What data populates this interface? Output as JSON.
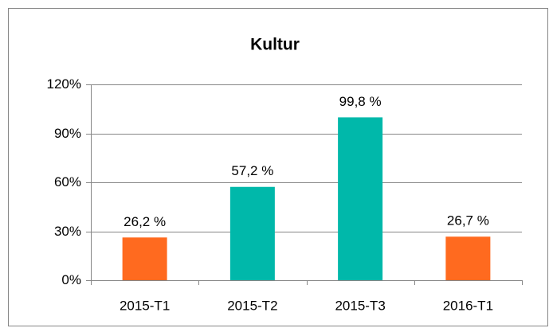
{
  "chart_data": {
    "type": "bar",
    "title": "Kultur",
    "categories": [
      "2015-T1",
      "2015-T2",
      "2015-T3",
      "2016-T1"
    ],
    "values": [
      26.2,
      57.2,
      99.8,
      26.7
    ],
    "value_labels": [
      "26,2 %",
      "57,2 %",
      "99,8 %",
      "26,7 %"
    ],
    "colors": [
      "#ff6a1f",
      "#00b8aa",
      "#00b8aa",
      "#ff6a1f"
    ],
    "ylim": [
      0,
      120
    ],
    "yticks": [
      {
        "value": 0,
        "label": "0%"
      },
      {
        "value": 30,
        "label": "30%"
      },
      {
        "value": 60,
        "label": "60%"
      },
      {
        "value": 90,
        "label": "90%"
      },
      {
        "value": 120,
        "label": "120%"
      }
    ],
    "grid": true
  }
}
